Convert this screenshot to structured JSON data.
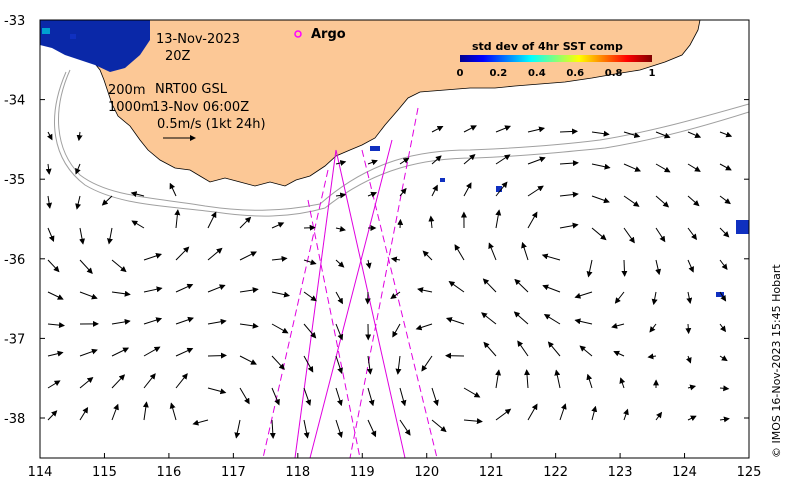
{
  "date_line1": "13-Nov-2023",
  "date_line2": "20Z",
  "depth_label_200": "200m",
  "depth_label_1000": "1000m",
  "product_label": "NRT00 GSL",
  "product_time": "13-Nov 06:00Z",
  "scale_vector_label": "0.5m/s (1kt 24h)",
  "argo_label": "Argo",
  "colorbar": {
    "title": "std dev of 4hr SST comp",
    "ticks": [
      "0",
      "0.2",
      "0.4",
      "0.6",
      "0.8",
      "1"
    ]
  },
  "credit": "© IMOS 16-Nov-2023 15:45 Hobart",
  "x_axis": {
    "ticks": [
      "114",
      "115",
      "116",
      "117",
      "118",
      "119",
      "120",
      "121",
      "122",
      "123",
      "124",
      "125"
    ]
  },
  "y_axis": {
    "ticks": [
      "-33",
      "-34",
      "-35",
      "-36",
      "-37",
      "-38"
    ]
  },
  "colors": {
    "land": "#fcc896",
    "track": "#e000e0",
    "contour": "#a0a0a0",
    "argo": "#ff00ff"
  }
}
